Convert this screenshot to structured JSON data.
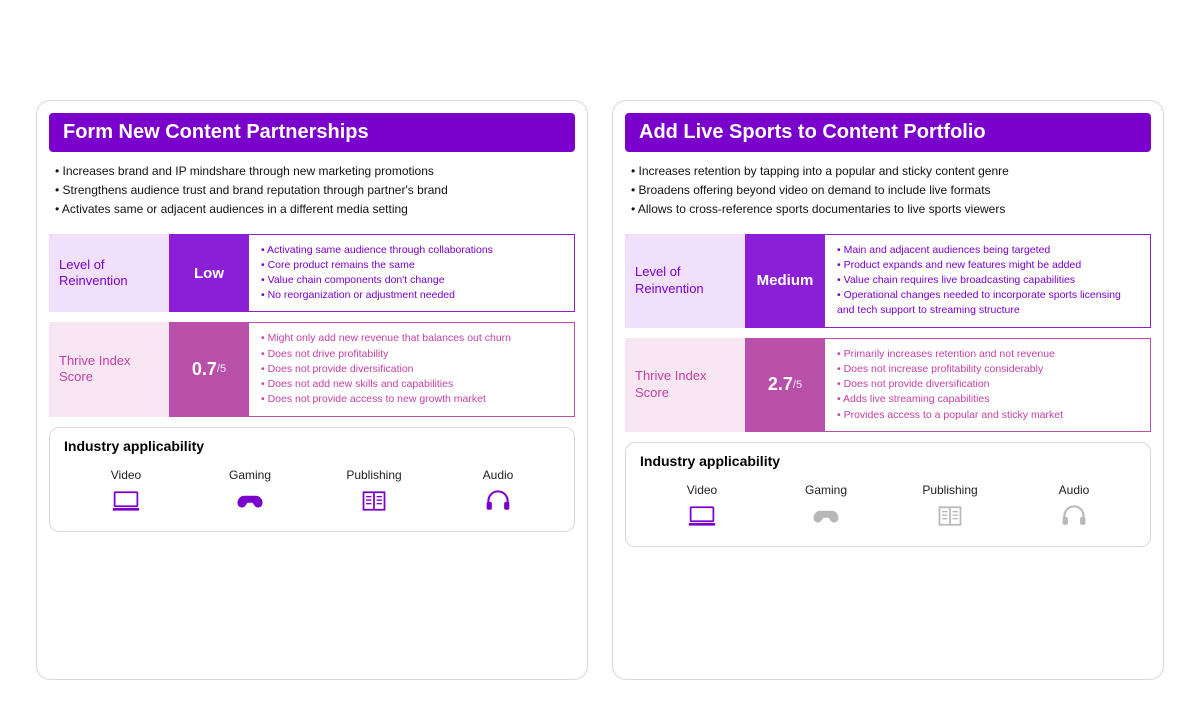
{
  "colors": {
    "purple_dark": "#7a00cc",
    "purple_mid": "#8b1fd6",
    "purple_light_bg": "#f1e0fb",
    "purple_text": "#7a00cc",
    "pink_dark": "#b84fa8",
    "pink_light_bg": "#f8e6f3",
    "pink_text": "#c43fa6",
    "icon_active": "#7a00cc",
    "icon_inactive": "#b8b8b8",
    "text_body": "#111111"
  },
  "cards": [
    {
      "title": "Form New Content Partnerships",
      "bullets": [
        "Increases brand and IP mindshare through new marketing promotions",
        "Strengthens audience trust and brand reputation through partner's brand",
        "Activates same or adjacent audiences in a different media setting"
      ],
      "reinvention": {
        "label": "Level of Reinvention",
        "value": "Low",
        "details": [
          "Activating same audience through collaborations",
          "Core product remains the same",
          "Value chain components don't change",
          "No reorganization or adjustment needed"
        ]
      },
      "thrive": {
        "label": "Thrive Index Score",
        "score": "0.7",
        "denom": "/5",
        "details": [
          "Might only add new revenue that balances out churn",
          "Does not drive profitability",
          "Does not provide diversification",
          "Does not add new skills and capabilities",
          "Does not provide access to new growth market"
        ]
      },
      "applicability": {
        "title": "Industry applicability",
        "items": [
          {
            "label": "Video",
            "icon": "video",
            "active": true
          },
          {
            "label": "Gaming",
            "icon": "gaming",
            "active": true
          },
          {
            "label": "Publishing",
            "icon": "publishing",
            "active": true
          },
          {
            "label": "Audio",
            "icon": "audio",
            "active": true
          }
        ]
      }
    },
    {
      "title": "Add Live Sports to Content Portfolio",
      "bullets": [
        "Increases retention by tapping into a popular and sticky content genre",
        "Broadens offering beyond video on demand to include live formats",
        "Allows to cross-reference sports documentaries to live sports viewers"
      ],
      "reinvention": {
        "label": "Level of Reinvention",
        "value": "Medium",
        "details": [
          "Main and adjacent audiences being targeted",
          "Product expands and new features might be added",
          "Value chain requires live broadcasting capabilities",
          "Operational changes needed to incorporate sports licensing and tech support to streaming structure"
        ]
      },
      "thrive": {
        "label": "Thrive Index Score",
        "score": "2.7",
        "denom": "/5",
        "details": [
          "Primarily increases retention and not revenue",
          "Does not increase profitability considerably",
          "Does not provide diversification",
          "Adds live streaming capabilities",
          "Provides access to a popular and sticky market"
        ]
      },
      "applicability": {
        "title": "Industry applicability",
        "items": [
          {
            "label": "Video",
            "icon": "video",
            "active": true
          },
          {
            "label": "Gaming",
            "icon": "gaming",
            "active": false
          },
          {
            "label": "Publishing",
            "icon": "publishing",
            "active": false
          },
          {
            "label": "Audio",
            "icon": "audio",
            "active": false
          }
        ]
      }
    }
  ]
}
